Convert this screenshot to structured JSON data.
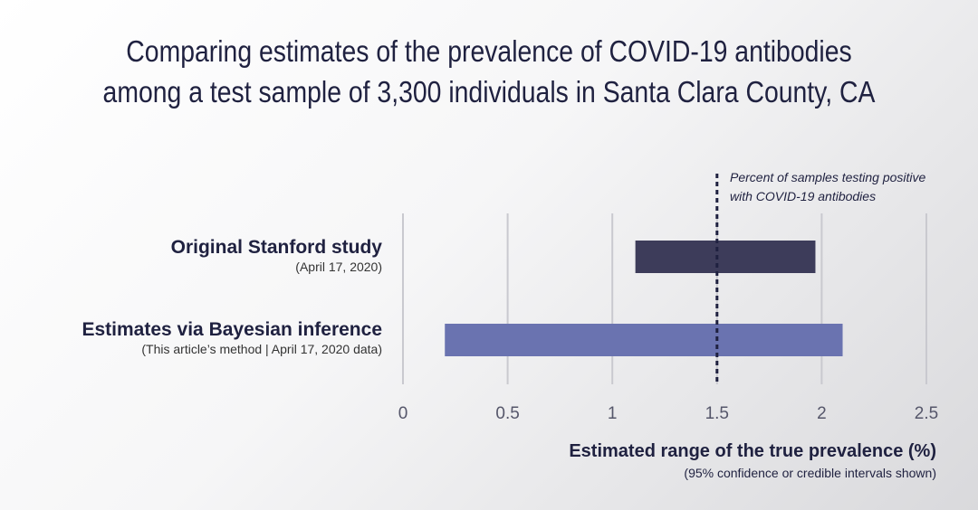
{
  "title": {
    "line1": "Comparing estimates of the prevalence of COVID-19 antibodies",
    "line2": "among a test sample of 3,300 individuals in Santa Clara County, CA"
  },
  "chart_data": {
    "type": "bar",
    "orientation": "horizontal-range",
    "categories": [
      {
        "label": "Original Stanford study",
        "sublabel": "(April 17, 2020)",
        "low": 1.11,
        "high": 1.97,
        "color": "#3d3c5a"
      },
      {
        "label": "Estimates via Bayesian inference",
        "sublabel": "(This article’s method | April 17, 2020 data)",
        "low": 0.2,
        "high": 2.1,
        "color": "#6a73b0"
      }
    ],
    "reference_line": {
      "value": 1.5,
      "style": "dashed",
      "annotation": [
        "Percent of samples testing positive",
        "with COVID-19 antibodies"
      ]
    },
    "xlabel": "Estimated range of the true prevalence  (%)",
    "xsublabel": "(95% confidence or credible intervals shown)",
    "xlim": [
      0,
      2.5
    ],
    "xticks": [
      "0",
      "0.5",
      "1",
      "1.5",
      "2",
      "2.5"
    ],
    "grid": "vertical"
  }
}
